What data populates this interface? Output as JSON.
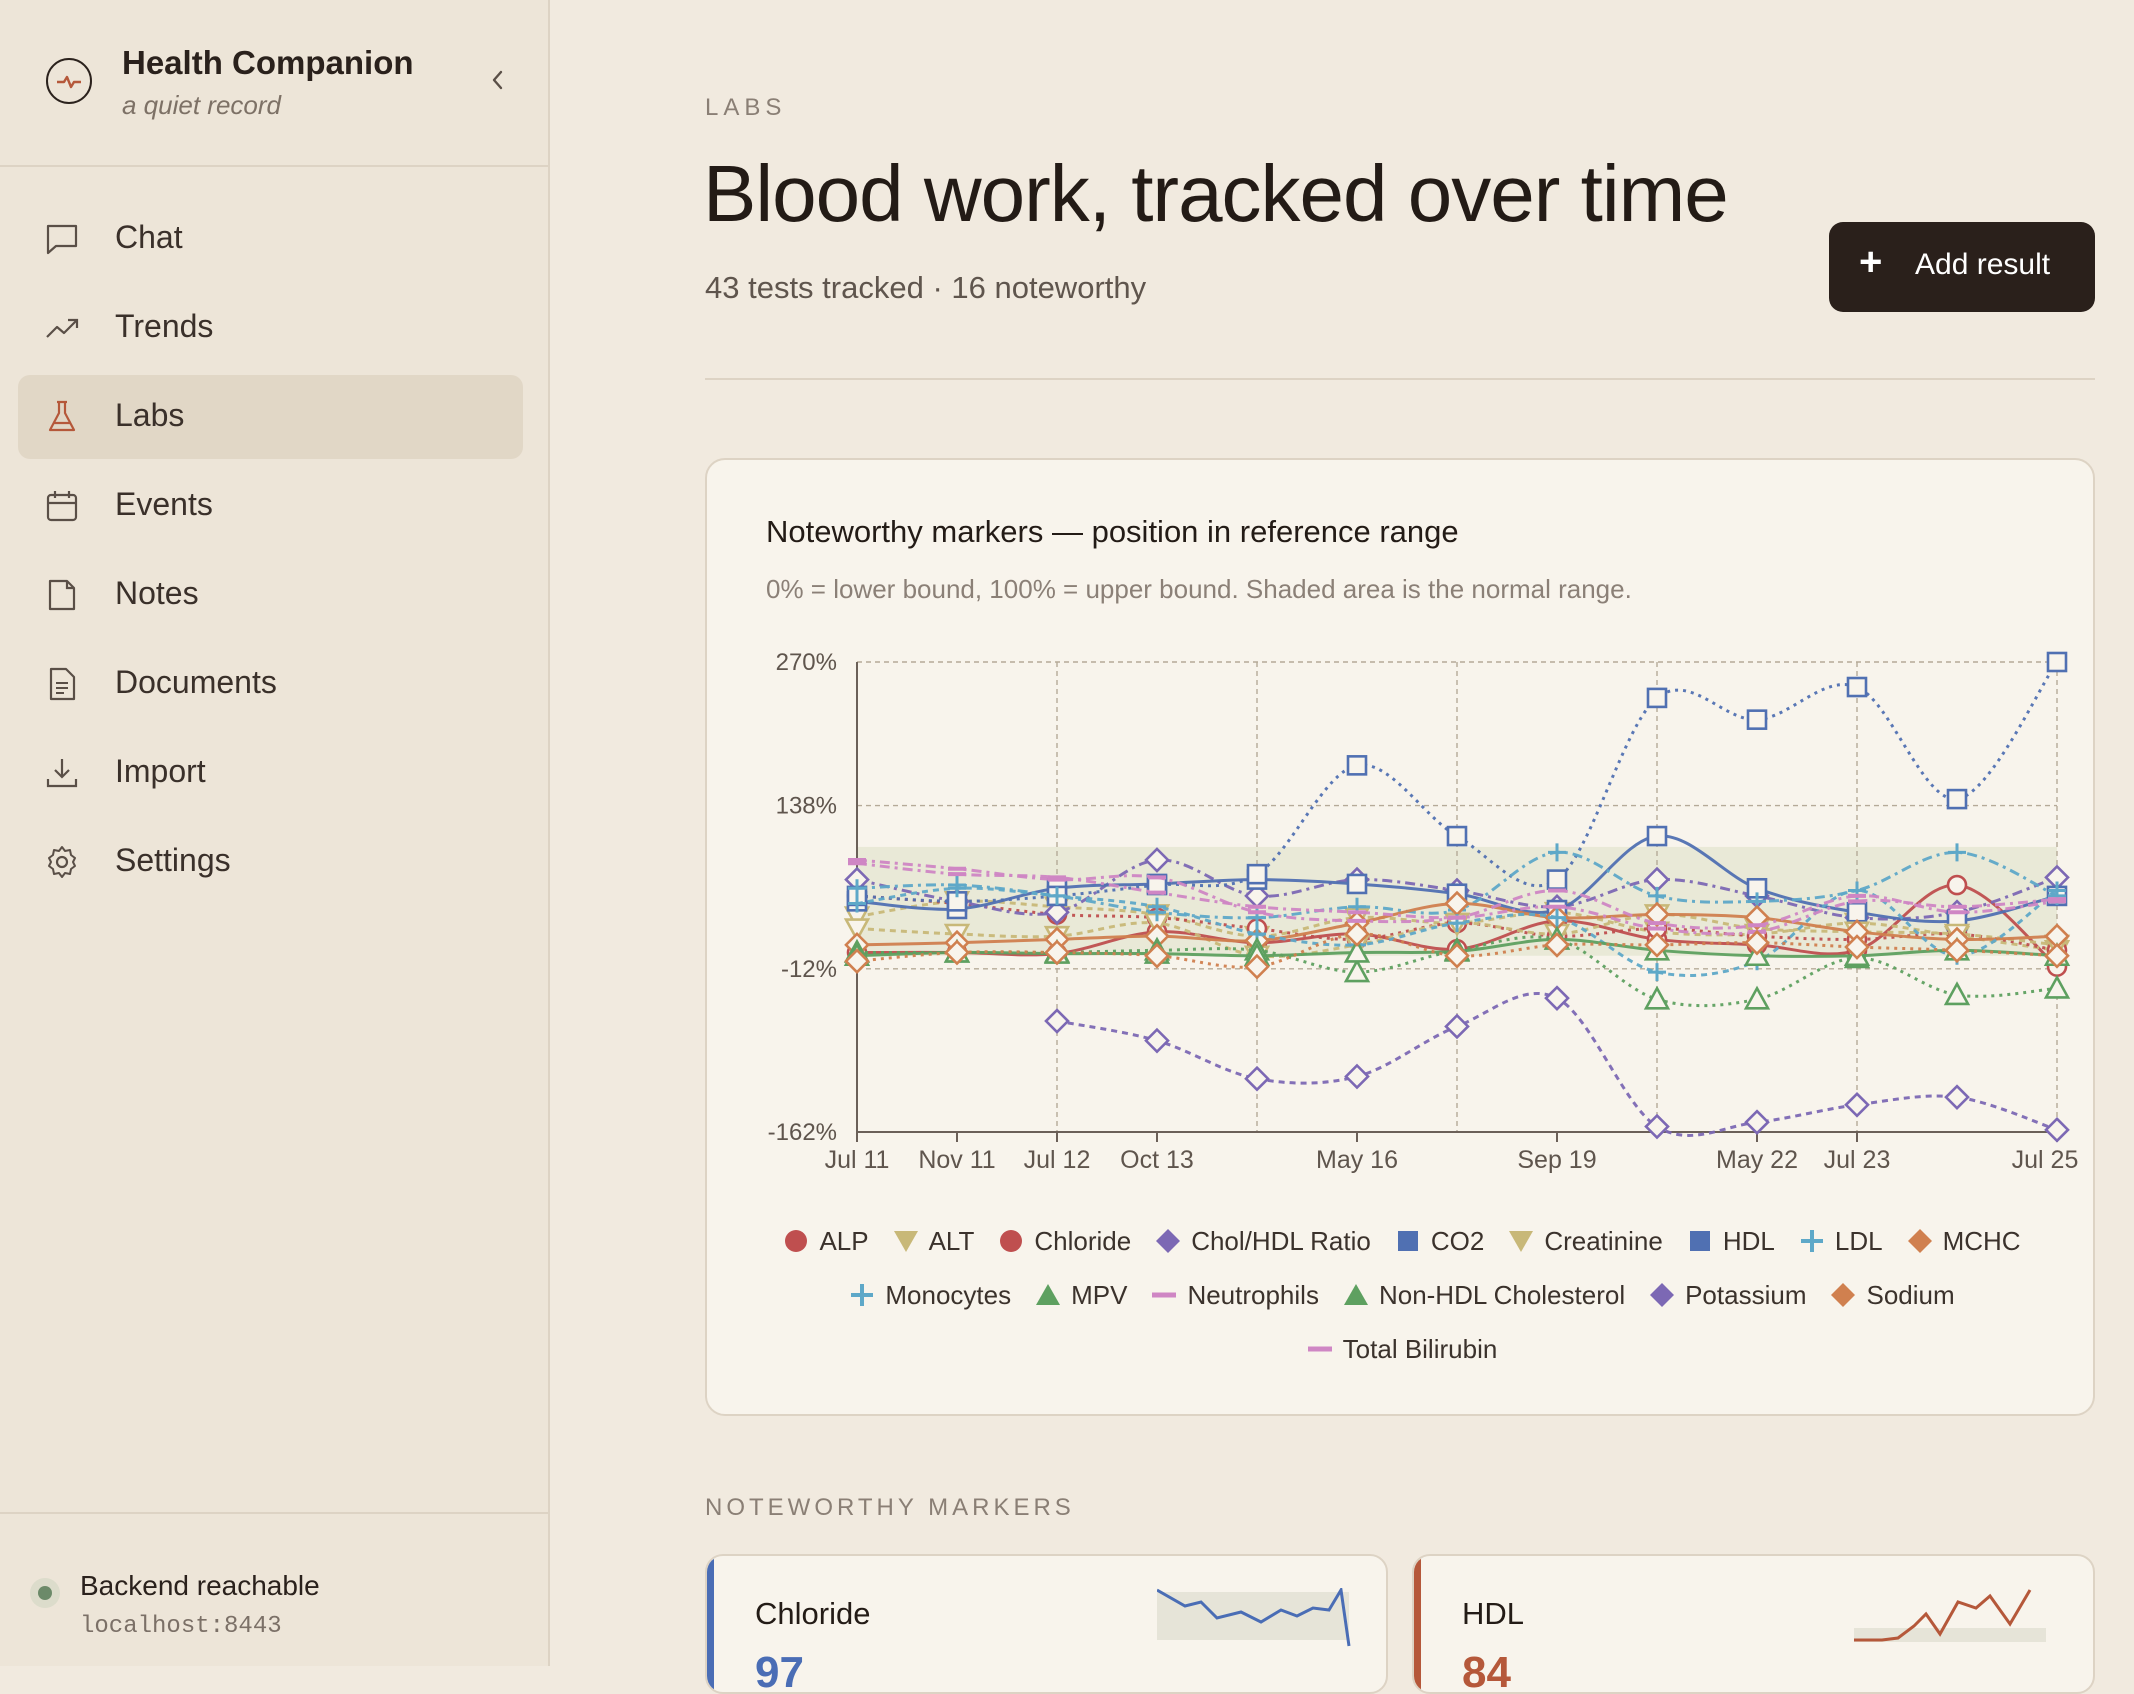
{
  "sidebar": {
    "brand_title": "Health Companion",
    "brand_subtitle": "a quiet record",
    "items": [
      {
        "label": "Chat",
        "icon": "chat-icon"
      },
      {
        "label": "Trends",
        "icon": "trend-icon"
      },
      {
        "label": "Labs",
        "icon": "flask-icon",
        "active": true
      },
      {
        "label": "Events",
        "icon": "calendar-icon"
      },
      {
        "label": "Notes",
        "icon": "note-icon"
      },
      {
        "label": "Documents",
        "icon": "document-icon"
      },
      {
        "label": "Import",
        "icon": "download-icon"
      },
      {
        "label": "Settings",
        "icon": "gear-icon"
      }
    ],
    "status_title": "Backend reachable",
    "status_host": "localhost:8443",
    "status_color": "#6c8a69"
  },
  "header": {
    "eyebrow": "LABS",
    "title": "Blood work, tracked over time",
    "subtitle": "43 tests tracked · 16 noteworthy",
    "add_button": "Add result"
  },
  "chart_card": {
    "title": "Noteworthy markers — position in reference range",
    "subtitle": "0% = lower bound, 100% = upper bound. Shaded area is the normal range."
  },
  "chart_data": {
    "type": "line",
    "y_ticks": [
      "270%",
      "138%",
      "-12%",
      "-162%"
    ],
    "ylim": [
      -162,
      270
    ],
    "x_ticks": [
      "Jul 11",
      "Nov 11",
      "Jul 12",
      "Oct 13",
      "May 16",
      "Sep 19",
      "May 22",
      "Jul 23",
      "Jul 25"
    ],
    "normal_range": [
      0,
      100
    ],
    "series": [
      {
        "name": "ALP",
        "color": "#bf4f4f",
        "marker": "circle",
        "values": [
          3,
          3,
          2,
          22,
          12,
          20,
          6,
          32,
          15,
          10,
          5,
          65,
          -10
        ]
      },
      {
        "name": "ALT",
        "color": "#c8b878",
        "marker": "triangle-down",
        "values": [
          36,
          50,
          45,
          38,
          18,
          35,
          30,
          40,
          22,
          20,
          30,
          18,
          5
        ]
      },
      {
        "name": "Chloride",
        "color": "#bf4f4f",
        "marker": "circle",
        "values": [
          55,
          48,
          38,
          35,
          25,
          15,
          30,
          18,
          25,
          18,
          15,
          20,
          5
        ]
      },
      {
        "name": "Chol/HDL Ratio",
        "color": "#7c68b4",
        "marker": "diamond",
        "values": [
          70,
          50,
          40,
          88,
          55,
          70,
          60,
          45,
          70,
          55,
          35,
          40,
          72
        ]
      },
      {
        "name": "CO2",
        "color": "#5070b2",
        "marker": "square",
        "values": [
          50,
          43,
          62,
          66,
          70,
          66,
          57,
          42,
          110,
          62,
          40,
          32,
          55
        ]
      },
      {
        "name": "Creatinine",
        "color": "#c8b878",
        "marker": "triangle-down",
        "values": [
          25,
          20,
          18,
          30,
          0,
          10,
          30,
          20,
          38,
          25,
          22,
          20,
          10
        ]
      },
      {
        "name": "HDL",
        "color": "#5070b2",
        "marker": "square",
        "values": [
          55,
          50,
          55,
          65,
          75,
          175,
          110,
          70,
          237,
          217,
          247,
          144,
          270
        ]
      },
      {
        "name": "LDL",
        "color": "#5ea8c8",
        "marker": "plus",
        "values": [
          62,
          65,
          55,
          40,
          35,
          45,
          42,
          95,
          55,
          50,
          60,
          95,
          55
        ]
      },
      {
        "name": "MCHC",
        "color": "#d0804f",
        "marker": "diamond",
        "values": [
          10,
          12,
          15,
          18,
          14,
          30,
          48,
          35,
          38,
          35,
          22,
          15,
          18
        ]
      },
      {
        "name": "Monocytes",
        "color": "#5ea8c8",
        "marker": "plus",
        "values": [
          48,
          62,
          55,
          45,
          20,
          10,
          30,
          35,
          -15,
          -5,
          60,
          0,
          60
        ]
      },
      {
        "name": "MPV",
        "color": "#5ea060",
        "marker": "triangle",
        "values": [
          3,
          3,
          3,
          5,
          5,
          -15,
          5,
          15,
          -40,
          -40,
          -2,
          -36,
          -30
        ]
      },
      {
        "name": "Neutrophils",
        "color": "#cf86c4",
        "marker": "line",
        "values": [
          85,
          75,
          72,
          58,
          45,
          40,
          35,
          45,
          25,
          22,
          50,
          45,
          52
        ]
      },
      {
        "name": "Non-HDL Cholesterol",
        "color": "#5ea060",
        "marker": "triangle",
        "values": [
          0,
          3,
          2,
          2,
          0,
          3,
          4,
          15,
          5,
          0,
          0,
          5,
          0
        ]
      },
      {
        "name": "Potassium",
        "color": "#7c68b4",
        "marker": "diamond",
        "values": [
          null,
          null,
          -60,
          -78,
          -113,
          -111,
          -65,
          -39,
          -157,
          -153,
          -137,
          -130,
          -160
        ]
      },
      {
        "name": "Sodium",
        "color": "#d0804f",
        "marker": "diamond",
        "values": [
          -5,
          3,
          3,
          0,
          -10,
          20,
          0,
          10,
          10,
          12,
          8,
          5,
          0
        ]
      },
      {
        "name": "Total Bilirubin",
        "color": "#cf86c4",
        "marker": "line",
        "values": [
          88,
          80,
          70,
          72,
          40,
          32,
          35,
          60,
          30,
          28,
          55,
          40,
          50
        ]
      }
    ]
  },
  "markers_section": {
    "label": "NOTEWORTHY MARKERS",
    "cards": [
      {
        "name": "Chloride",
        "value": "97",
        "accent": "#4a6db5"
      },
      {
        "name": "HDL",
        "value": "84",
        "accent": "#b5583a"
      }
    ]
  }
}
